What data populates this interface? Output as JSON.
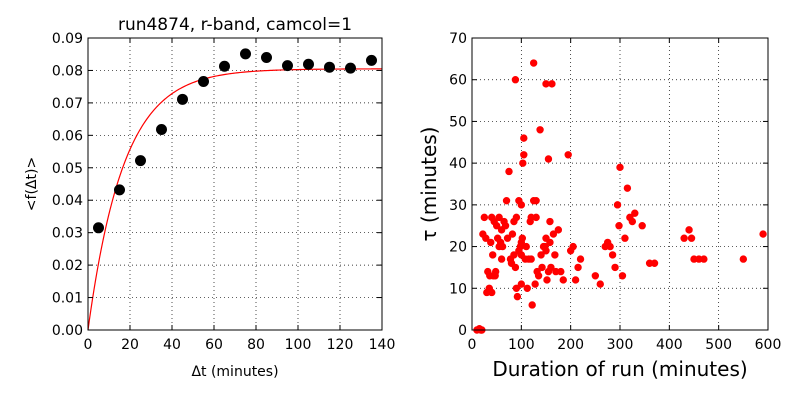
{
  "colors": {
    "marker_left": "#000000",
    "marker_right": "#ff0000",
    "fit_line": "#ff0000",
    "frame": "#000000",
    "grid": "#000000"
  },
  "chart_data": [
    {
      "type": "scatter",
      "title": "run4874, r-band, camcol=1",
      "xlabel": "Δt (minutes)",
      "ylabel": "<f(Δt)>",
      "xlim": [
        0,
        140
      ],
      "ylim": [
        0,
        0.09
      ],
      "xticks": [
        0,
        20,
        40,
        60,
        80,
        100,
        120,
        140
      ],
      "yticks": [
        0.0,
        0.01,
        0.02,
        0.03,
        0.04,
        0.05,
        0.06,
        0.07,
        0.08,
        0.09
      ],
      "xtick_labels": [
        "0",
        "20",
        "40",
        "60",
        "80",
        "100",
        "120",
        "140"
      ],
      "ytick_labels": [
        "0.00",
        "0.01",
        "0.02",
        "0.03",
        "0.04",
        "0.05",
        "0.06",
        "0.07",
        "0.08",
        "0.09"
      ],
      "grid": true,
      "series": [
        {
          "kind": "points",
          "color": "#000000",
          "x": [
            5,
            15,
            25,
            35,
            45,
            55,
            65,
            75,
            85,
            95,
            105,
            115,
            125,
            135
          ],
          "y": [
            0.0315,
            0.0432,
            0.0522,
            0.0618,
            0.0711,
            0.0766,
            0.0813,
            0.0851,
            0.084,
            0.0815,
            0.0819,
            0.081,
            0.0807,
            0.0831
          ]
        },
        {
          "kind": "fit-line",
          "color": "#ff0000",
          "model": "A*(1-exp(-x/tau))",
          "A": 0.0805,
          "tau": 17
        }
      ]
    },
    {
      "type": "scatter",
      "title": "",
      "xlabel": "Duration of run (minutes)",
      "ylabel": "τ (minutes)",
      "xlim": [
        0,
        600
      ],
      "ylim": [
        0,
        70
      ],
      "xticks": [
        0,
        100,
        200,
        300,
        400,
        500,
        600
      ],
      "yticks": [
        0,
        10,
        20,
        30,
        40,
        50,
        60,
        70
      ],
      "xtick_labels": [
        "0",
        "100",
        "200",
        "300",
        "400",
        "500",
        "600"
      ],
      "ytick_labels": [
        "0",
        "10",
        "20",
        "30",
        "40",
        "50",
        "60",
        "70"
      ],
      "grid": true,
      "series": [
        {
          "kind": "points",
          "color": "#ff0000",
          "x": [
            10,
            15,
            18,
            20,
            22,
            25,
            28,
            30,
            32,
            35,
            36,
            38,
            40,
            40,
            42,
            43,
            45,
            47,
            48,
            50,
            52,
            55,
            55,
            58,
            60,
            60,
            62,
            65,
            68,
            70,
            72,
            75,
            78,
            80,
            82,
            85,
            85,
            88,
            88,
            90,
            90,
            92,
            95,
            95,
            98,
            100,
            100,
            100,
            100,
            102,
            103,
            105,
            105,
            108,
            110,
            112,
            115,
            118,
            120,
            120,
            122,
            125,
            125,
            128,
            130,
            130,
            132,
            135,
            138,
            140,
            142,
            145,
            148,
            150,
            150,
            150,
            152,
            155,
            155,
            158,
            158,
            160,
            162,
            165,
            168,
            170,
            175,
            180,
            185,
            195,
            200,
            205,
            210,
            215,
            220,
            250,
            260,
            270,
            275,
            280,
            285,
            290,
            295,
            298,
            300,
            305,
            310,
            315,
            320,
            325,
            330,
            345,
            360,
            370,
            430,
            440,
            445,
            450,
            460,
            470,
            550,
            590
          ],
          "y": [
            0,
            0.3,
            0,
            0,
            23,
            27,
            22,
            9,
            14,
            10,
            13,
            21,
            9,
            27,
            18,
            13,
            26,
            13,
            14,
            25,
            22,
            20,
            27,
            21,
            17,
            24,
            20,
            26,
            25,
            31,
            22,
            38,
            17,
            16,
            23,
            18,
            26,
            15,
            60,
            27,
            10,
            8,
            19,
            31,
            20,
            11,
            30,
            21,
            18,
            22,
            40,
            46,
            42,
            17,
            20,
            10,
            17,
            26,
            17,
            27,
            6,
            64,
            31,
            11,
            31,
            27,
            14,
            13,
            48,
            18,
            15,
            20,
            20,
            59,
            22,
            19,
            12,
            41,
            14,
            21,
            26,
            15,
            59,
            23,
            18,
            14,
            24,
            14,
            12,
            42,
            19,
            20,
            12,
            15,
            17,
            13,
            11,
            20,
            21,
            20,
            18,
            15,
            30,
            25,
            39,
            13,
            22,
            34,
            27,
            26,
            28,
            25,
            16,
            16,
            22,
            24,
            22,
            17,
            17,
            17,
            17,
            23
          ]
        }
      ]
    }
  ]
}
